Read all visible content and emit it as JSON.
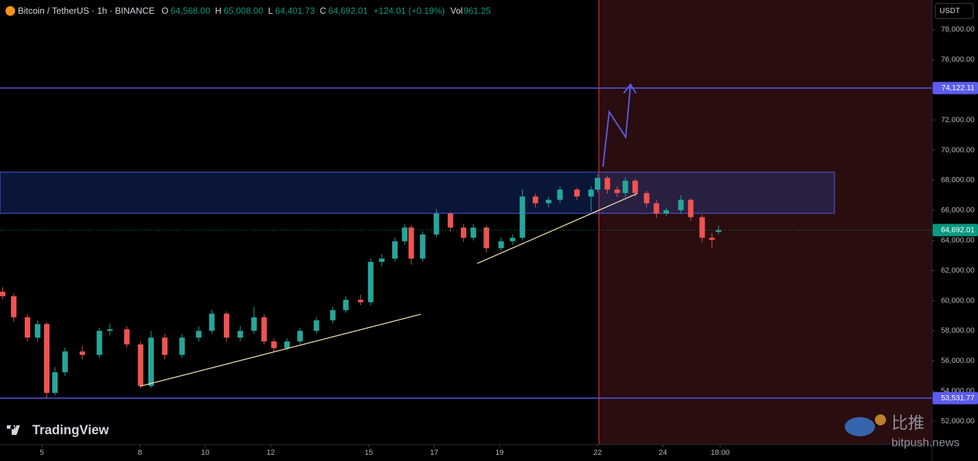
{
  "header": {
    "symbol": "Bitcoin / TetherUS · 1h · BINANCE",
    "ohlc": [
      {
        "key": "O",
        "value": "64,568.00"
      },
      {
        "key": "H",
        "value": "65,008.00"
      },
      {
        "key": "L",
        "value": "64,401.73"
      },
      {
        "key": "C",
        "value": "64,692.01"
      }
    ],
    "change": "+124.01 (+0.19%)",
    "vol_key": "Vol",
    "vol": "961.25"
  },
  "watermarks": {
    "brand": "TradingView",
    "site_cn": "比推",
    "site": "bitpush.news"
  },
  "chart_data": {
    "type": "candlestick",
    "currency": "USDT",
    "up_color": "#26a69a",
    "down_color": "#ef5350",
    "x": [
      3.8,
      4.14,
      4.56,
      4.87,
      5.15,
      5.4,
      5.71,
      6.24,
      6.76,
      7.08,
      7.6,
      8.02,
      8.34,
      8.76,
      9.29,
      9.8,
      10.2,
      10.65,
      11.07,
      11.49,
      11.8,
      12.1,
      12.5,
      12.9,
      13.4,
      13.9,
      14.3,
      14.75,
      15.06,
      15.4,
      15.8,
      16.1,
      16.3,
      16.65,
      17.07,
      17.5,
      17.9,
      18.2,
      18.6,
      19.05,
      19.4,
      19.7,
      20.1,
      20.5,
      20.85,
      21.37,
      21.8,
      22.0,
      22.3,
      22.6,
      22.85,
      23.15,
      23.5,
      23.8,
      24.1,
      24.55,
      24.85,
      25.2,
      25.5,
      25.7
    ],
    "open": [
      60600,
      60300,
      58900,
      57550,
      58450,
      53880,
      55250,
      56630,
      56400,
      58000,
      58100,
      57100,
      54340,
      57550,
      56400,
      57550,
      58000,
      59140,
      57550,
      58000,
      58900,
      57300,
      56850,
      57300,
      58000,
      58700,
      59370,
      60060,
      59900,
      62580,
      62800,
      63950,
      64860,
      62800,
      64400,
      65780,
      64860,
      64180,
      64860,
      63490,
      63950,
      64180,
      66920,
      66470,
      66700,
      67380,
      66920,
      67380,
      68160,
      67380,
      67150,
      67970,
      67150,
      66470,
      65780,
      66010,
      66700,
      65550,
      64180,
      64568
    ],
    "high": [
      60900,
      60500,
      59100,
      58700,
      58600,
      55600,
      56900,
      57000,
      58200,
      58500,
      58300,
      57300,
      58000,
      57800,
      57800,
      58300,
      59400,
      59300,
      58300,
      59600,
      59100,
      57500,
      57500,
      58200,
      58900,
      59600,
      60300,
      60400,
      62800,
      63100,
      64200,
      65100,
      65000,
      64600,
      66100,
      65900,
      65100,
      65100,
      65000,
      64200,
      64400,
      67400,
      67100,
      66900,
      67600,
      67500,
      67600,
      68400,
      68300,
      67600,
      68200,
      68100,
      67300,
      66700,
      66200,
      67000,
      66800,
      65700,
      64500,
      65008
    ],
    "low": [
      60100,
      58600,
      57300,
      57300,
      53531.77,
      53700,
      55000,
      56100,
      56200,
      57700,
      56900,
      54200,
      54200,
      56100,
      56200,
      57300,
      57800,
      57300,
      57300,
      57800,
      57100,
      56600,
      56700,
      57100,
      57800,
      58500,
      59200,
      59700,
      59700,
      62300,
      62600,
      63700,
      62400,
      62600,
      64200,
      64600,
      63900,
      64000,
      63200,
      63300,
      63700,
      64000,
      66200,
      66200,
      66500,
      66700,
      65900,
      67200,
      67100,
      66900,
      66900,
      66900,
      66200,
      65500,
      65600,
      65800,
      65300,
      63900,
      63500,
      64401.73
    ],
    "close": [
      60300,
      58900,
      57550,
      58450,
      53880,
      55250,
      56630,
      56400,
      58000,
      58100,
      57100,
      54340,
      57550,
      56400,
      57550,
      58000,
      59140,
      57550,
      58000,
      58900,
      57300,
      56850,
      57300,
      58000,
      58700,
      59370,
      60060,
      59900,
      62580,
      62800,
      63950,
      64860,
      62800,
      64400,
      65780,
      64860,
      64180,
      64860,
      63490,
      63950,
      64180,
      66920,
      66470,
      66700,
      67380,
      66920,
      67380,
      68160,
      67380,
      67150,
      67970,
      67150,
      66470,
      65780,
      66010,
      66700,
      65550,
      64180,
      64040,
      64692.01
    ],
    "xlim": [
      3.72,
      32.23
    ],
    "xticks": [
      5,
      8,
      10,
      12,
      15,
      17,
      19,
      22,
      24,
      {
        "value": 25.75,
        "label": "18:00"
      }
    ],
    "ylim": [
      50450,
      79970
    ],
    "yticks": [
      {
        "value": 52000,
        "label": "52,000.00"
      },
      {
        "value": 54000,
        "label": "54,000.00"
      },
      {
        "value": 56000,
        "label": "56,000.00"
      },
      {
        "value": 58000,
        "label": "58,000.00"
      },
      {
        "value": 60000,
        "label": "60,000.00"
      },
      {
        "value": 62000,
        "label": "62,000.00"
      },
      {
        "value": 64000,
        "label": "64,000.00"
      },
      {
        "value": 66000,
        "label": "66,000.00"
      },
      {
        "value": 68000,
        "label": "68,000.00"
      },
      {
        "value": 70000,
        "label": "70,000.00"
      },
      {
        "value": 72000,
        "label": "72,000.00"
      },
      {
        "value": 74000,
        "label": "74,000.00"
      },
      {
        "value": 76000,
        "label": "76,000.00"
      },
      {
        "value": 78000,
        "label": "78,000.00"
      }
    ],
    "levels": [
      {
        "value": 74122.11,
        "label": "74,122.11",
        "color": "#5b5cf0"
      },
      {
        "value": 53531.77,
        "label": "53,531.77",
        "color": "#5b5cf0"
      }
    ],
    "last_price": {
      "value": 64692.01,
      "label": "64,692.01",
      "color": "#089981"
    }
  }
}
